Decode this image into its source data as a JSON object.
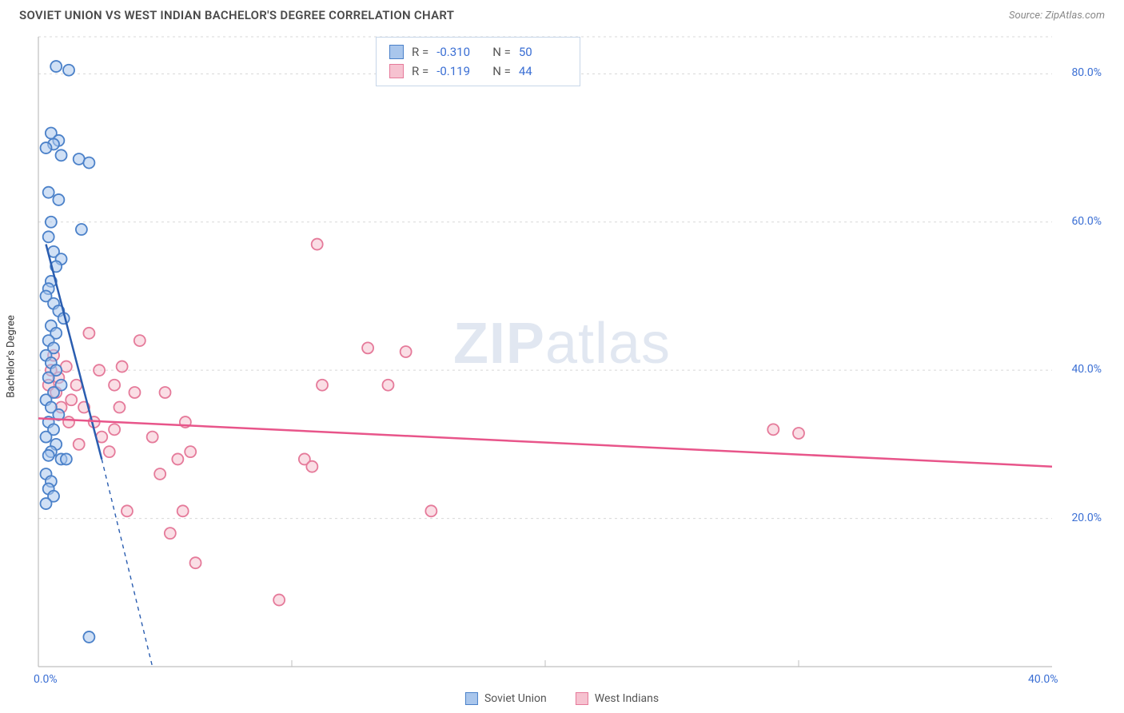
{
  "header": {
    "title": "SOVIET UNION VS WEST INDIAN BACHELOR'S DEGREE CORRELATION CHART",
    "source_prefix": "Source: ",
    "source_name": "ZipAtlas.com"
  },
  "watermark": {
    "zip": "ZIP",
    "atlas": "atlas"
  },
  "chart": {
    "type": "scatter",
    "ylabel": "Bachelor's Degree",
    "background_color": "#ffffff",
    "grid_color": "#d8d8d8",
    "axis_color": "#bfbfbf",
    "tick_label_color": "#3b6fd4",
    "xlim": [
      0,
      40
    ],
    "ylim": [
      0,
      85
    ],
    "xticks": [
      0,
      10,
      20,
      30,
      40
    ],
    "xtick_labels": [
      "0.0%",
      "",
      "",
      "",
      "40.0%"
    ],
    "yticks": [
      20,
      40,
      60,
      80
    ],
    "ytick_labels": [
      "20.0%",
      "40.0%",
      "60.0%",
      "80.0%"
    ],
    "inner_vticks": [
      10,
      20,
      30
    ],
    "marker_radius": 7,
    "marker_stroke_width": 1.8,
    "series": {
      "soviet": {
        "label": "Soviet Union",
        "fill": "#a9c6ec",
        "stroke": "#4b81c9",
        "fill_opacity": 0.55,
        "points": [
          [
            0.7,
            81
          ],
          [
            1.2,
            80.5
          ],
          [
            0.5,
            72
          ],
          [
            0.8,
            71
          ],
          [
            0.6,
            70.5
          ],
          [
            0.3,
            70
          ],
          [
            0.9,
            69
          ],
          [
            1.6,
            68.5
          ],
          [
            2.0,
            68
          ],
          [
            0.4,
            64
          ],
          [
            0.8,
            63
          ],
          [
            0.5,
            60
          ],
          [
            1.7,
            59
          ],
          [
            0.4,
            58
          ],
          [
            0.6,
            56
          ],
          [
            0.9,
            55
          ],
          [
            0.7,
            54
          ],
          [
            0.5,
            52
          ],
          [
            0.4,
            51
          ],
          [
            0.3,
            50
          ],
          [
            0.6,
            49
          ],
          [
            0.8,
            48
          ],
          [
            1.0,
            47
          ],
          [
            0.5,
            46
          ],
          [
            0.7,
            45
          ],
          [
            0.4,
            44
          ],
          [
            0.6,
            43
          ],
          [
            0.3,
            42
          ],
          [
            0.5,
            41
          ],
          [
            0.7,
            40
          ],
          [
            0.4,
            39
          ],
          [
            0.9,
            38
          ],
          [
            0.6,
            37
          ],
          [
            0.3,
            36
          ],
          [
            0.5,
            35
          ],
          [
            0.8,
            34
          ],
          [
            0.4,
            33
          ],
          [
            0.6,
            32
          ],
          [
            0.3,
            31
          ],
          [
            0.7,
            30
          ],
          [
            0.5,
            29
          ],
          [
            0.4,
            28.5
          ],
          [
            0.9,
            28
          ],
          [
            1.1,
            28
          ],
          [
            2.0,
            4
          ],
          [
            0.3,
            26
          ],
          [
            0.5,
            25
          ],
          [
            0.4,
            24
          ],
          [
            0.6,
            23
          ],
          [
            0.3,
            22
          ]
        ],
        "trend": {
          "x1": 0.3,
          "y1": 57,
          "x2": 2.5,
          "y2": 28,
          "dash_x2": 4.5,
          "dash_y2": 0,
          "color": "#2a5db0",
          "width": 2.5
        }
      },
      "westindian": {
        "label": "West Indians",
        "fill": "#f6c2d0",
        "stroke": "#e57a9a",
        "fill_opacity": 0.55,
        "points": [
          [
            0.5,
            40
          ],
          [
            0.8,
            39
          ],
          [
            1.1,
            40.5
          ],
          [
            1.5,
            38
          ],
          [
            0.7,
            37
          ],
          [
            1.3,
            36
          ],
          [
            2.0,
            45
          ],
          [
            2.4,
            40
          ],
          [
            3.0,
            38
          ],
          [
            3.3,
            40.5
          ],
          [
            3.8,
            37
          ],
          [
            3.0,
            32
          ],
          [
            2.5,
            31
          ],
          [
            4.5,
            31
          ],
          [
            5.0,
            37
          ],
          [
            5.5,
            28
          ],
          [
            5.8,
            33
          ],
          [
            6.0,
            29
          ],
          [
            4.8,
            26
          ],
          [
            3.5,
            21
          ],
          [
            5.7,
            21
          ],
          [
            6.2,
            14
          ],
          [
            5.2,
            18
          ],
          [
            9.5,
            9
          ],
          [
            11.0,
            57
          ],
          [
            13.0,
            43
          ],
          [
            14.5,
            42.5
          ],
          [
            13.8,
            38
          ],
          [
            10.5,
            28
          ],
          [
            11.2,
            38
          ],
          [
            10.8,
            27
          ],
          [
            15.5,
            21
          ],
          [
            29.0,
            32
          ],
          [
            30.0,
            31.5
          ],
          [
            1.8,
            35
          ],
          [
            2.2,
            33
          ],
          [
            0.9,
            35
          ],
          [
            1.2,
            33
          ],
          [
            1.6,
            30
          ],
          [
            2.8,
            29
          ],
          [
            3.2,
            35
          ],
          [
            4.0,
            44
          ],
          [
            0.6,
            42
          ],
          [
            0.4,
            38
          ]
        ],
        "trend": {
          "x1": 0,
          "y1": 33.5,
          "x2": 40,
          "y2": 27,
          "color": "#e8558a",
          "width": 2.5
        }
      }
    },
    "legend_top": {
      "border_color": "#c7d6e8",
      "rows": [
        {
          "swatch_fill": "#a9c6ec",
          "swatch_stroke": "#4b81c9",
          "r_label": "R =",
          "r_value": "-0.310",
          "n_label": "N =",
          "n_value": "50"
        },
        {
          "swatch_fill": "#f6c2d0",
          "swatch_stroke": "#e57a9a",
          "r_label": "R =",
          "r_value": "-0.119",
          "n_label": "N =",
          "n_value": "44"
        }
      ]
    }
  }
}
